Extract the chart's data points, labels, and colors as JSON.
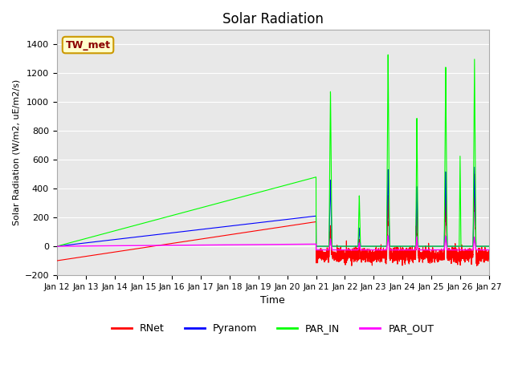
{
  "title": "Solar Radiation",
  "xlabel": "Time",
  "ylabel": "Solar Radiation (W/m2, uE/m2/s)",
  "ylim": [
    -200,
    1500
  ],
  "yticks": [
    -200,
    0,
    200,
    400,
    600,
    800,
    1000,
    1200,
    1400
  ],
  "x_tick_labels": [
    "Jan 12",
    "Jan 13",
    "Jan 14",
    "Jan 15",
    "Jan 16",
    "Jan 17",
    "Jan 18",
    "Jan 19",
    "Jan 20",
    "Jan 21",
    "Jan 22",
    "Jan 23",
    "Jan 24",
    "Jan 25",
    "Jan 26",
    "Jan 27"
  ],
  "colors": {
    "RNet": "#ff0000",
    "Pyranom": "#0000ff",
    "PAR_IN": "#00ff00",
    "PAR_OUT": "#ff00ff"
  },
  "background_color": "#e8e8e8",
  "label_box_color": "#ffffcc",
  "label_box_edge": "#cc9900",
  "label_text": "TW_met",
  "legend_entries": [
    "RNet",
    "Pyranom",
    "PAR_IN",
    "PAR_OUT"
  ]
}
